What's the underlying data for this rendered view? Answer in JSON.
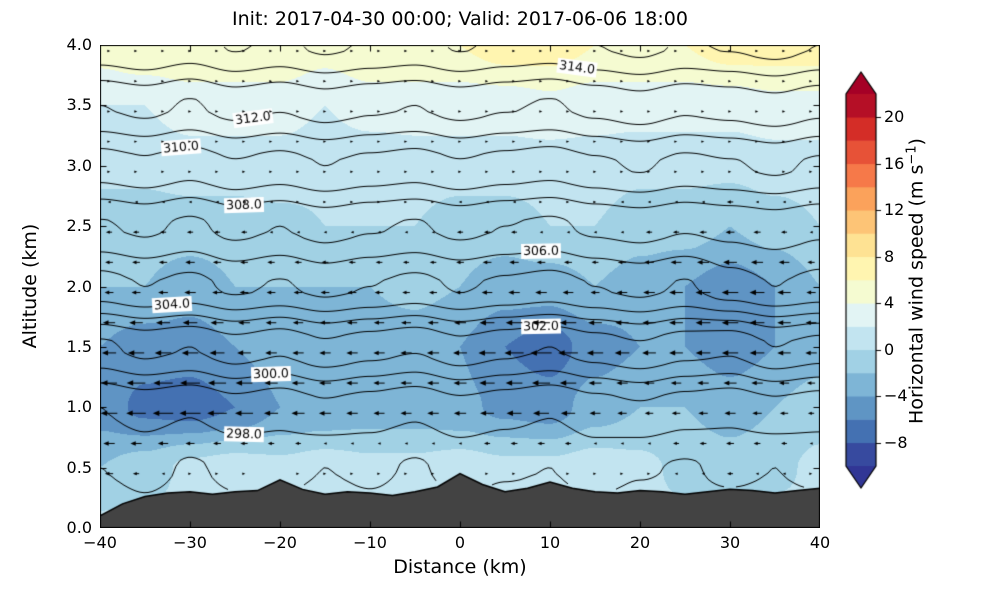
{
  "figure": {
    "title": "Init: 2017-04-30 00:00; Valid: 2017-06-06 18:00",
    "xlabel": "Distance (km)",
    "ylabel": "Altitude (km)",
    "colorbar_label_prefix": "Horizontal wind speed (m s",
    "colorbar_label_sup": "−1",
    "colorbar_label_suffix": ")"
  },
  "chart_data": {
    "type": "heatmap",
    "title": "Init: 2017-04-30 00:00; Valid: 2017-06-06 18:00",
    "xlabel": "Distance (km)",
    "ylabel": "Altitude (km)",
    "xlim": [
      -40,
      40
    ],
    "ylim": [
      0,
      4
    ],
    "x_tick_values": [
      -40,
      -30,
      -20,
      -10,
      0,
      10,
      20,
      30,
      40
    ],
    "x_tick_labels": [
      "−40",
      "−30",
      "−20",
      "−10",
      "0",
      "10",
      "20",
      "30",
      "40"
    ],
    "y_tick_values": [
      0,
      0.5,
      1,
      1.5,
      2,
      2.5,
      3,
      3.5,
      4
    ],
    "y_tick_labels": [
      "0.0",
      "0.5",
      "1.0",
      "1.5",
      "2.0",
      "2.5",
      "3.0",
      "3.5",
      "4.0"
    ],
    "grid_x": [
      -40,
      -35,
      -30,
      -25,
      -20,
      -15,
      -10,
      -5,
      0,
      5,
      10,
      15,
      20,
      25,
      30,
      35,
      40
    ],
    "grid_z": [
      0,
      0.5,
      1,
      1.5,
      2,
      2.5,
      3,
      3.5,
      4
    ],
    "wind_speed": [
      [
        0.5,
        0.5,
        0.8,
        0.6,
        0.5,
        0.8,
        0.6,
        0.5,
        0.8,
        0.5,
        0.6,
        0.8,
        0.5,
        0.6,
        0.5,
        0.8,
        0.6
      ],
      [
        -2,
        -1,
        0.5,
        1,
        0.5,
        1,
        0.5,
        0.5,
        1,
        0.5,
        0.5,
        1,
        0.5,
        -0.5,
        -1,
        -0.5,
        0.5
      ],
      [
        -5,
        -6.5,
        -7,
        -6,
        -4,
        -3.5,
        -3,
        -3,
        -3.5,
        -4.5,
        -5,
        -3,
        -2,
        -2,
        -3,
        -2,
        -1
      ],
      [
        -4,
        -5,
        -5,
        -4,
        -3,
        -3,
        -3,
        -3,
        -4,
        -6,
        -7,
        -5,
        -4,
        -4,
        -5,
        -4,
        -3
      ],
      [
        -2,
        -2,
        -3,
        -2,
        -2,
        -2,
        -2,
        -1.5,
        -2,
        -3,
        -3,
        -2,
        -3,
        -4,
        -5,
        -4,
        -2
      ],
      [
        -1,
        -1,
        -1,
        -1,
        -0.5,
        0,
        0,
        0,
        -1,
        -1,
        0,
        0,
        -1,
        -1,
        -2,
        -1,
        0
      ],
      [
        0.5,
        0.5,
        1,
        1,
        1,
        0.5,
        0.5,
        1,
        1,
        1,
        1,
        1,
        0.5,
        0.5,
        0.5,
        1,
        1
      ],
      [
        2,
        2,
        3,
        3,
        3,
        2,
        3,
        3,
        3,
        3,
        3.5,
        3,
        3,
        3,
        3,
        3.5,
        3.5
      ],
      [
        5,
        6,
        6,
        6,
        6,
        5,
        6,
        6,
        6,
        7,
        7,
        6,
        6,
        6,
        7,
        7,
        7
      ]
    ],
    "theta": [
      [
        296.2,
        296.5,
        296.3,
        296.6,
        296.4,
        296.2,
        296.5,
        296.3,
        296.6,
        296.4,
        296.3,
        296.5,
        296.2,
        296.6,
        296.4,
        296.5,
        296.3
      ],
      [
        297.0,
        297.3,
        296.9,
        297.2,
        297.4,
        297.0,
        297.2,
        296.9,
        297.3,
        297.1,
        297.0,
        297.4,
        297.1,
        296.9,
        297.2,
        297.0,
        297.3
      ],
      [
        298.0,
        298.4,
        298.1,
        298.6,
        298.3,
        298.8,
        298.5,
        298.2,
        298.7,
        298.4,
        298.1,
        298.6,
        298.9,
        298.5,
        298.3,
        298.7,
        298.4
      ],
      [
        300.8,
        301.3,
        301.0,
        301.6,
        301.2,
        301.8,
        301.4,
        301.1,
        301.7,
        301.3,
        301.0,
        301.5,
        301.9,
        301.4,
        301.2,
        302.0,
        301.6
      ],
      [
        304.6,
        305.0,
        304.7,
        305.2,
        304.9,
        305.3,
        305.0,
        304.7,
        305.1,
        304.8,
        304.6,
        305.0,
        305.3,
        304.9,
        305.6,
        306.0,
        305.7
      ],
      [
        306.9,
        307.2,
        306.8,
        307.3,
        307.0,
        307.4,
        307.1,
        306.9,
        307.3,
        307.0,
        306.8,
        307.2,
        307.4,
        307.1,
        307.3,
        307.5,
        307.2
      ],
      [
        309.5,
        309.8,
        309.4,
        309.9,
        309.6,
        310.0,
        309.7,
        309.5,
        309.9,
        309.6,
        309.4,
        309.8,
        310.1,
        309.7,
        309.9,
        310.2,
        309.8
      ],
      [
        312.0,
        312.3,
        311.9,
        312.4,
        312.1,
        312.5,
        312.2,
        312.0,
        312.4,
        312.1,
        311.9,
        312.3,
        312.6,
        312.2,
        312.4,
        312.7,
        312.3
      ],
      [
        314.7,
        315.0,
        314.6,
        315.1,
        314.8,
        315.2,
        314.9,
        314.7,
        315.1,
        314.8,
        314.6,
        315.0,
        315.3,
        314.9,
        315.1,
        315.4,
        315.0
      ]
    ],
    "contour_levels": [
      297,
      298,
      299,
      300,
      301,
      302,
      303,
      304,
      305,
      306,
      307,
      308,
      309,
      310,
      311,
      312,
      313,
      314,
      315
    ],
    "contour_labels": [
      {
        "level": 298,
        "x_km": -24,
        "text": "298.0"
      },
      {
        "level": 300,
        "x_km": -21,
        "text": "300.0"
      },
      {
        "level": 302,
        "x_km": 9,
        "text": "302.0"
      },
      {
        "level": 304,
        "x_km": -32,
        "text": "304.0"
      },
      {
        "level": 306,
        "x_km": 9,
        "text": "306.0"
      },
      {
        "level": 308,
        "x_km": -24,
        "text": "308.0"
      },
      {
        "level": 310,
        "x_km": -31,
        "text": "310.0"
      },
      {
        "level": 312,
        "x_km": -23,
        "text": "312.0"
      },
      {
        "level": 314,
        "x_km": 13,
        "text": "314.0"
      }
    ],
    "terrain_x": [
      -40,
      -37.5,
      -35,
      -32.5,
      -30,
      -27.5,
      -25,
      -22.5,
      -20,
      -17.5,
      -15,
      -12.5,
      -10,
      -7.5,
      -5,
      -2.5,
      0,
      2.5,
      5,
      7.5,
      10,
      12.5,
      15,
      17.5,
      20,
      22.5,
      25,
      27.5,
      30,
      32.5,
      35,
      37.5,
      40
    ],
    "terrain_h": [
      0.1,
      0.2,
      0.26,
      0.29,
      0.3,
      0.28,
      0.3,
      0.31,
      0.4,
      0.32,
      0.28,
      0.3,
      0.29,
      0.27,
      0.3,
      0.34,
      0.45,
      0.36,
      0.3,
      0.33,
      0.38,
      0.33,
      0.3,
      0.29,
      0.31,
      0.3,
      0.28,
      0.3,
      0.32,
      0.31,
      0.29,
      0.31,
      0.33
    ],
    "terrain_color": "#434343",
    "colorbar": {
      "label": "Horizontal wind speed (m s⁻¹)",
      "tick_values": [
        -8,
        -4,
        0,
        4,
        8,
        12,
        16,
        20
      ],
      "tick_labels": [
        "−8",
        "−4",
        "0",
        "4",
        "8",
        "12",
        "16",
        "20"
      ],
      "vmin": -10,
      "vmax": 22,
      "step": 2,
      "colors": [
        "#313695",
        "#4575b4",
        "#74add1",
        "#abd9e9",
        "#e0f3f8",
        "#ffffbf",
        "#fee090",
        "#fdae61",
        "#f46d43",
        "#d73027",
        "#a50026"
      ]
    },
    "quiver": {
      "x_start": -39,
      "x_step": 3,
      "z_start": 0.45,
      "z_step": 0.25,
      "rows": 15
    }
  }
}
